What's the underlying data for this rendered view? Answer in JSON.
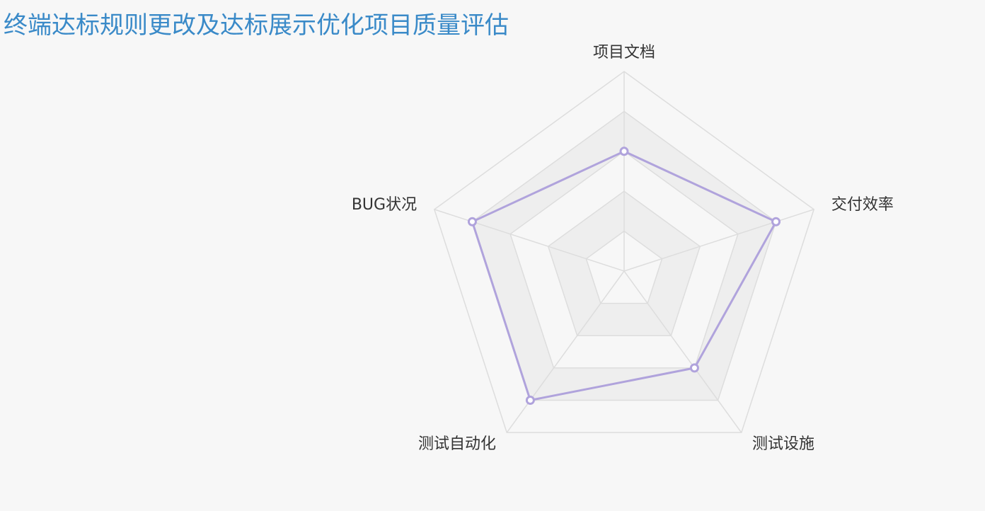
{
  "title": "终端达标规则更改及达标展示优化项目质量评估",
  "chart_data": {
    "type": "radar",
    "title": "终端达标规则更改及达标展示优化项目质量评估",
    "indicators": [
      "项目文档",
      "交付效率",
      "测试设施",
      "测试自动化",
      "BUG状况"
    ],
    "max": 5,
    "split_number": 5,
    "series": [
      {
        "values": [
          3,
          4,
          3,
          4,
          4
        ],
        "color": "#b0a3dc"
      }
    ],
    "split_area_colors": [
      "#f7f7f7",
      "#eeeeee"
    ],
    "split_line_color": "#dddddd"
  }
}
